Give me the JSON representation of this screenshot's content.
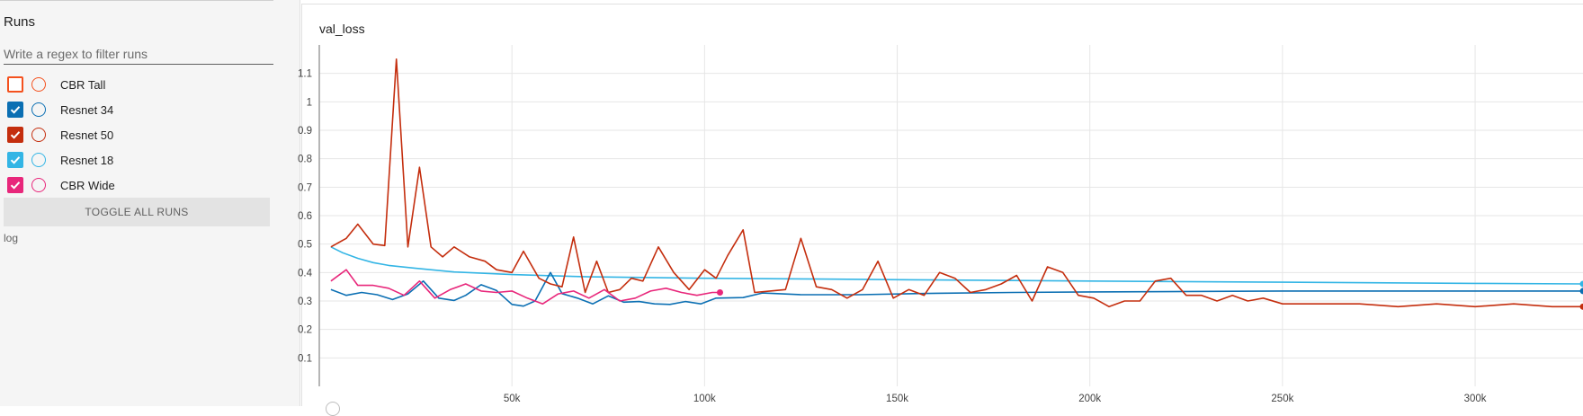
{
  "sidebar": {
    "title": "Runs",
    "filter_placeholder": "Write a regex to filter runs",
    "runs": [
      {
        "label": "CBR Tall",
        "checked": false,
        "color": "#f4511e"
      },
      {
        "label": "Resnet 34",
        "checked": true,
        "color": "#0b6fb3"
      },
      {
        "label": "Resnet 50",
        "checked": true,
        "color": "#c42e0e"
      },
      {
        "label": "Resnet 18",
        "checked": true,
        "color": "#33b5e5"
      },
      {
        "label": "CBR Wide",
        "checked": true,
        "color": "#e8277b"
      }
    ],
    "toggle_label": "TOGGLE ALL RUNS",
    "log_text": "log"
  },
  "chart_data": {
    "type": "line",
    "title": "val_loss",
    "xlabel": "",
    "ylabel": "",
    "xlim": [
      0,
      328000
    ],
    "ylim": [
      0,
      1.2
    ],
    "grid": true,
    "x_ticks": [
      50000,
      100000,
      150000,
      200000,
      250000,
      300000
    ],
    "x_tick_labels": [
      "50k",
      "100k",
      "150k",
      "200k",
      "250k",
      "300k"
    ],
    "y_ticks": [
      0.1,
      0.2,
      0.3,
      0.4,
      0.5,
      0.6,
      0.7,
      0.8,
      0.9,
      1,
      1.1
    ],
    "y_tick_labels": [
      "0.1",
      "0.2",
      "0.3",
      "0.4",
      "0.5",
      "0.6",
      "0.7",
      "0.8",
      "0.9",
      "1",
      "1.1"
    ],
    "series": [
      {
        "name": "Resnet 18",
        "color": "#33b5e5",
        "x": [
          3000,
          6000,
          10000,
          14000,
          18000,
          25000,
          35000,
          50000,
          70000,
          100000,
          130000,
          160000,
          200000,
          250000,
          300000,
          328000
        ],
        "y": [
          0.49,
          0.47,
          0.45,
          0.435,
          0.425,
          0.415,
          0.402,
          0.393,
          0.385,
          0.38,
          0.377,
          0.374,
          0.37,
          0.366,
          0.362,
          0.36
        ]
      },
      {
        "name": "Resnet 34",
        "color": "#0b6fb3",
        "x": [
          3000,
          7000,
          11000,
          15000,
          19000,
          23000,
          27000,
          31000,
          35000,
          38000,
          42000,
          46000,
          50000,
          53000,
          56000,
          60000,
          63000,
          67000,
          71000,
          75000,
          79000,
          83000,
          87000,
          91000,
          95000,
          99000,
          103000,
          110000,
          115000,
          125000,
          140000,
          160000,
          180000,
          200000,
          220000,
          250000,
          280000,
          310000,
          328000
        ],
        "y": [
          0.34,
          0.32,
          0.33,
          0.322,
          0.305,
          0.325,
          0.37,
          0.31,
          0.302,
          0.32,
          0.357,
          0.337,
          0.288,
          0.282,
          0.3,
          0.4,
          0.326,
          0.31,
          0.29,
          0.318,
          0.296,
          0.298,
          0.29,
          0.288,
          0.298,
          0.29,
          0.31,
          0.312,
          0.328,
          0.322,
          0.322,
          0.327,
          0.33,
          0.332,
          0.333,
          0.335,
          0.335,
          0.335,
          0.335
        ]
      },
      {
        "name": "Resnet 50",
        "color": "#c42e0e",
        "x": [
          3000,
          7000,
          10000,
          14000,
          17000,
          20000,
          23000,
          26000,
          29000,
          32000,
          35000,
          39000,
          43000,
          46000,
          50000,
          53000,
          57000,
          60000,
          63000,
          66000,
          69000,
          72000,
          75000,
          78000,
          81000,
          84000,
          88000,
          92000,
          96000,
          100000,
          103000,
          106000,
          110000,
          113000,
          117000,
          121000,
          125000,
          129000,
          133000,
          137000,
          141000,
          145000,
          149000,
          153000,
          157000,
          161000,
          165000,
          169000,
          173000,
          177000,
          181000,
          185000,
          189000,
          193000,
          197000,
          201000,
          205000,
          209000,
          213000,
          217000,
          221000,
          225000,
          229000,
          233000,
          237000,
          241000,
          245000,
          250000,
          260000,
          270000,
          280000,
          290000,
          300000,
          310000,
          320000,
          328000
        ],
        "y": [
          0.49,
          0.52,
          0.57,
          0.5,
          0.495,
          1.15,
          0.49,
          0.77,
          0.49,
          0.455,
          0.49,
          0.455,
          0.44,
          0.41,
          0.4,
          0.475,
          0.38,
          0.36,
          0.35,
          0.525,
          0.33,
          0.44,
          0.33,
          0.34,
          0.38,
          0.37,
          0.49,
          0.4,
          0.34,
          0.41,
          0.38,
          0.46,
          0.55,
          0.33,
          0.335,
          0.34,
          0.52,
          0.35,
          0.34,
          0.31,
          0.34,
          0.44,
          0.31,
          0.34,
          0.32,
          0.4,
          0.38,
          0.33,
          0.34,
          0.36,
          0.39,
          0.3,
          0.42,
          0.4,
          0.32,
          0.31,
          0.28,
          0.3,
          0.3,
          0.37,
          0.38,
          0.32,
          0.32,
          0.3,
          0.32,
          0.3,
          0.31,
          0.29,
          0.29,
          0.29,
          0.28,
          0.29,
          0.28,
          0.29,
          0.28,
          0.28
        ]
      },
      {
        "name": "CBR Wide",
        "color": "#e8277b",
        "x": [
          3000,
          7000,
          10000,
          14000,
          18000,
          22000,
          26000,
          30000,
          34000,
          38000,
          42000,
          46000,
          50000,
          54000,
          58000,
          62000,
          66000,
          70000,
          74000,
          78000,
          82000,
          86000,
          90000,
          94000,
          98000,
          102000,
          104000
        ],
        "y": [
          0.37,
          0.41,
          0.355,
          0.355,
          0.345,
          0.32,
          0.37,
          0.31,
          0.34,
          0.36,
          0.335,
          0.33,
          0.335,
          0.31,
          0.29,
          0.325,
          0.335,
          0.31,
          0.34,
          0.3,
          0.31,
          0.335,
          0.345,
          0.33,
          0.32,
          0.33,
          0.33
        ]
      }
    ]
  }
}
